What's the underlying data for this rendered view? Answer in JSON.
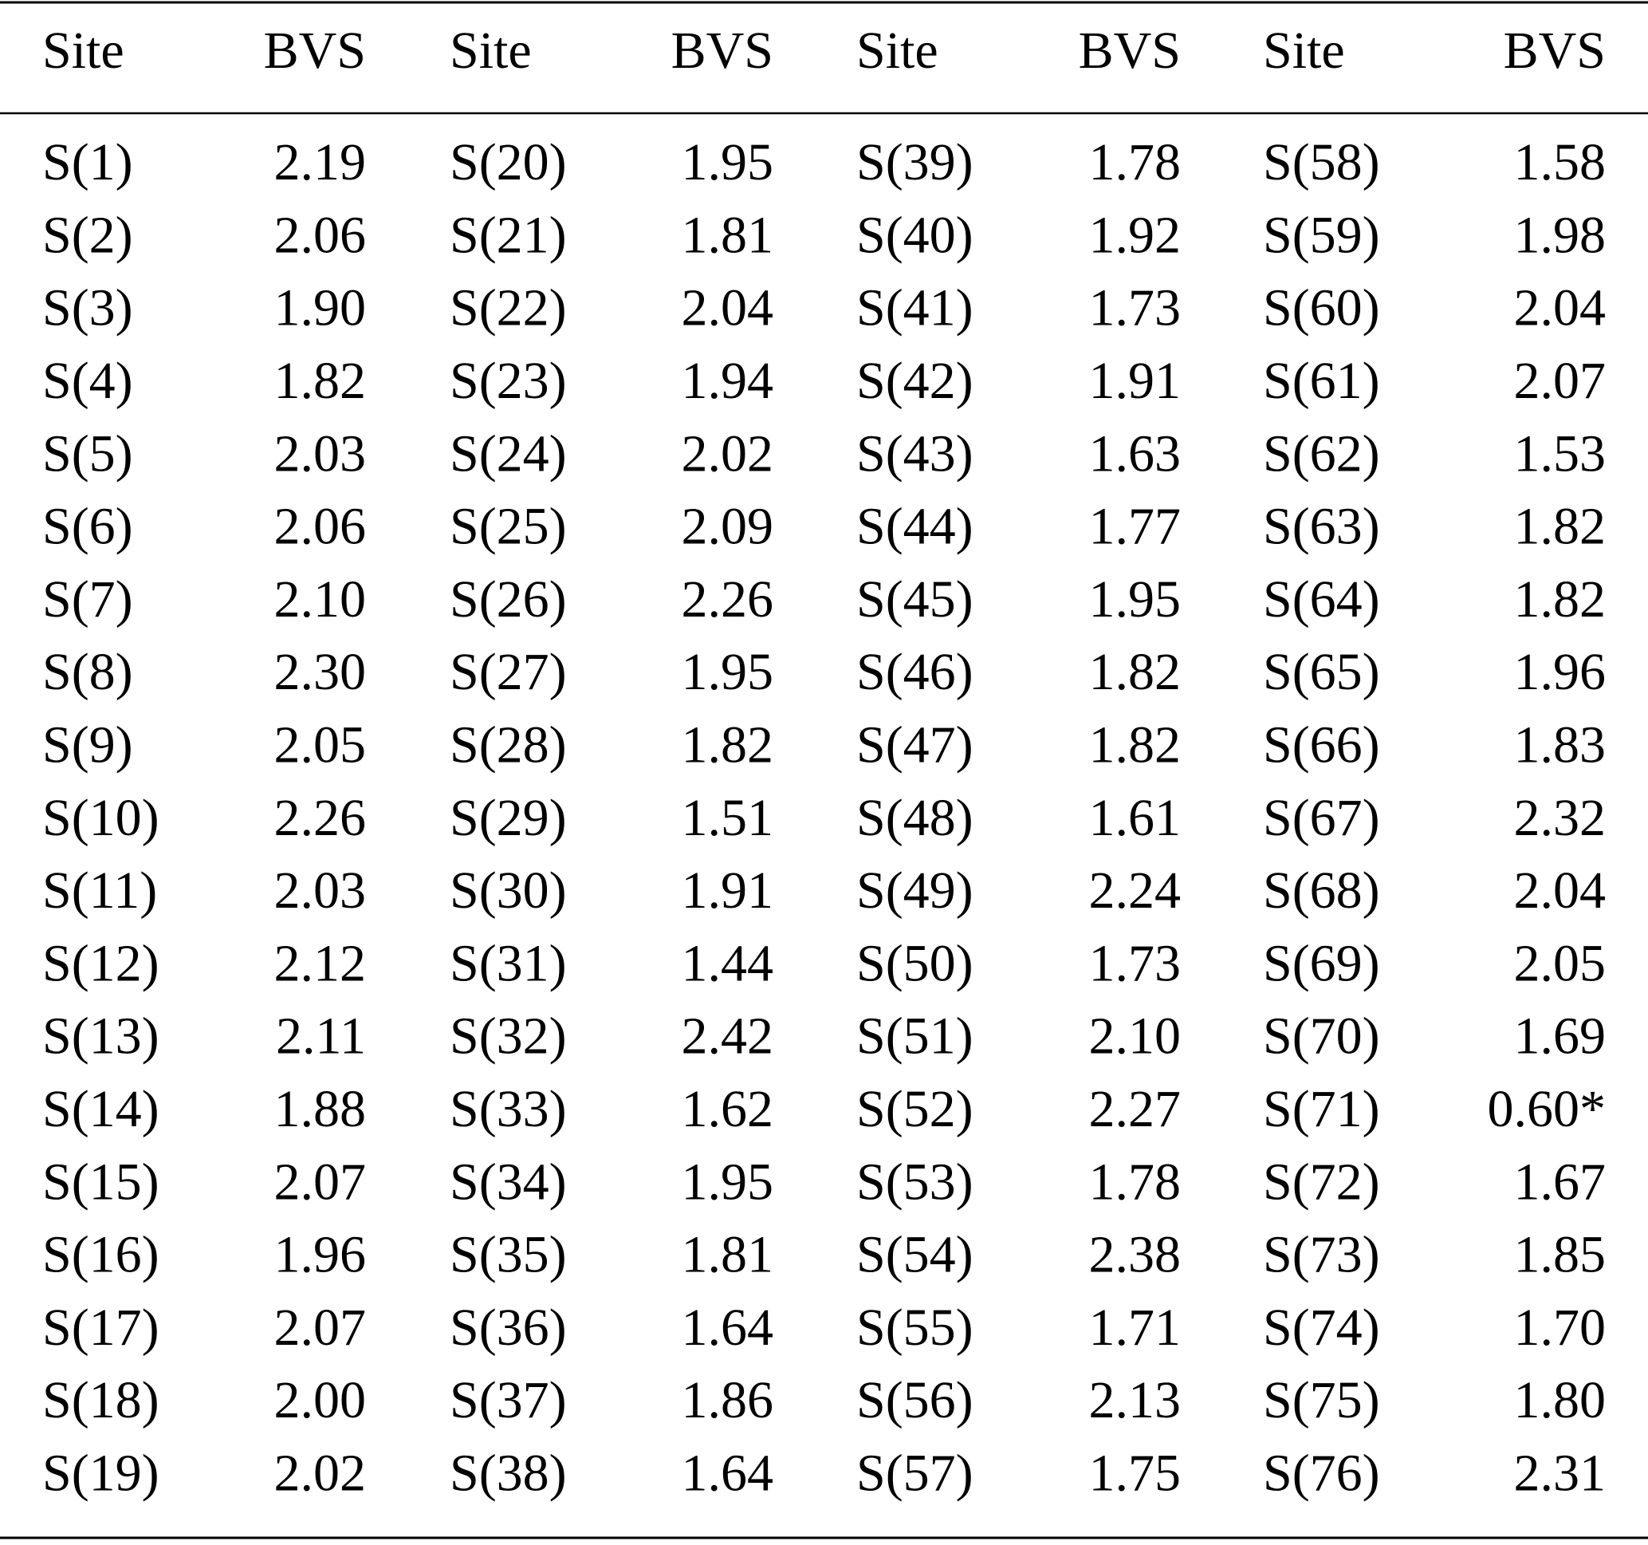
{
  "table": {
    "header": [
      "Site",
      "BVS",
      "Site",
      "BVS",
      "Site",
      "BVS",
      "Site",
      "BVS"
    ],
    "rows": [
      [
        "S(1)",
        "2.19",
        "S(20)",
        "1.95",
        "S(39)",
        "1.78",
        "S(58)",
        "1.58"
      ],
      [
        "S(2)",
        "2.06",
        "S(21)",
        "1.81",
        "S(40)",
        "1.92",
        "S(59)",
        "1.98"
      ],
      [
        "S(3)",
        "1.90",
        "S(22)",
        "2.04",
        "S(41)",
        "1.73",
        "S(60)",
        "2.04"
      ],
      [
        "S(4)",
        "1.82",
        "S(23)",
        "1.94",
        "S(42)",
        "1.91",
        "S(61)",
        "2.07"
      ],
      [
        "S(5)",
        "2.03",
        "S(24)",
        "2.02",
        "S(43)",
        "1.63",
        "S(62)",
        "1.53"
      ],
      [
        "S(6)",
        "2.06",
        "S(25)",
        "2.09",
        "S(44)",
        "1.77",
        "S(63)",
        "1.82"
      ],
      [
        "S(7)",
        "2.10",
        "S(26)",
        "2.26",
        "S(45)",
        "1.95",
        "S(64)",
        "1.82"
      ],
      [
        "S(8)",
        "2.30",
        "S(27)",
        "1.95",
        "S(46)",
        "1.82",
        "S(65)",
        "1.96"
      ],
      [
        "S(9)",
        "2.05",
        "S(28)",
        "1.82",
        "S(47)",
        "1.82",
        "S(66)",
        "1.83"
      ],
      [
        "S(10)",
        "2.26",
        "S(29)",
        "1.51",
        "S(48)",
        "1.61",
        "S(67)",
        "2.32"
      ],
      [
        "S(11)",
        "2.03",
        "S(30)",
        "1.91",
        "S(49)",
        "2.24",
        "S(68)",
        "2.04"
      ],
      [
        "S(12)",
        "2.12",
        "S(31)",
        "1.44",
        "S(50)",
        "1.73",
        "S(69)",
        "2.05"
      ],
      [
        "S(13)",
        "2.11",
        "S(32)",
        "2.42",
        "S(51)",
        "2.10",
        "S(70)",
        "1.69"
      ],
      [
        "S(14)",
        "1.88",
        "S(33)",
        "1.62",
        "S(52)",
        "2.27",
        "S(71)",
        "0.60*"
      ],
      [
        "S(15)",
        "2.07",
        "S(34)",
        "1.95",
        "S(53)",
        "1.78",
        "S(72)",
        "1.67"
      ],
      [
        "S(16)",
        "1.96",
        "S(35)",
        "1.81",
        "S(54)",
        "2.38",
        "S(73)",
        "1.85"
      ],
      [
        "S(17)",
        "2.07",
        "S(36)",
        "1.64",
        "S(55)",
        "1.71",
        "S(74)",
        "1.70"
      ],
      [
        "S(18)",
        "2.00",
        "S(37)",
        "1.86",
        "S(56)",
        "2.13",
        "S(75)",
        "1.80"
      ],
      [
        "S(19)",
        "2.02",
        "S(38)",
        "1.64",
        "S(57)",
        "1.75",
        "S(76)",
        "2.31"
      ]
    ]
  }
}
